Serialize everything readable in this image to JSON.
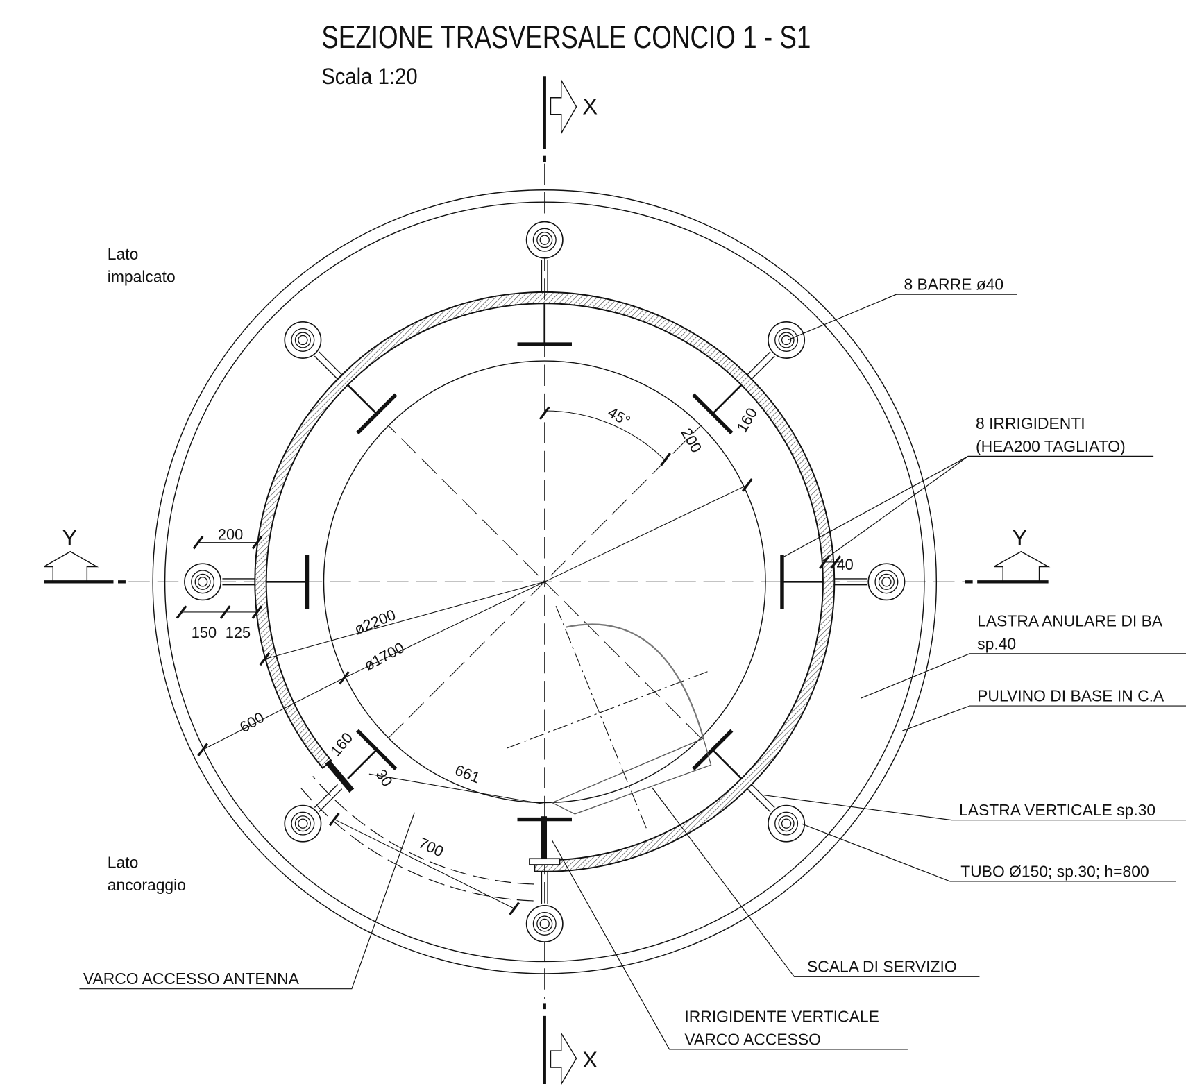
{
  "header": {
    "title": "SEZIONE TRASVERSALE CONCIO 1 - S1",
    "subtitle": "Scala 1:20"
  },
  "section_marks": {
    "top": "X",
    "bottom": "X",
    "left": "Y",
    "right": "Y"
  },
  "side_labels": [
    {
      "lines": [
        "Lato",
        "impalcato"
      ]
    },
    {
      "lines": [
        "Lato",
        "ancoraggio"
      ]
    }
  ],
  "callouts": [
    {
      "lines": [
        "8 BARRE ø40"
      ]
    },
    {
      "lines": [
        "8 IRRIGIDENTI",
        "(HEA200 TAGLIATO)"
      ]
    },
    {
      "lines": [
        "LASTRA ANULARE DI BA",
        "sp.40"
      ]
    },
    {
      "lines": [
        "PULVINO DI BASE IN C.A"
      ]
    },
    {
      "lines": [
        "LASTRA VERTICALE sp.30"
      ]
    },
    {
      "lines": [
        "TUBO Ø150; sp.30; h=800"
      ]
    },
    {
      "lines": [
        "SCALA DI SERVIZIO"
      ]
    },
    {
      "lines": [
        "VARCO ACCESSO ANTENNA"
      ]
    },
    {
      "lines": [
        "IRRIGIDENTE VERTICALE",
        "VARCO ACCESSO"
      ]
    }
  ],
  "dimensions": [
    "45°",
    "200",
    "160",
    "40",
    "200",
    "150",
    "125",
    "ø2200",
    "ø1700",
    "600",
    "160",
    "30",
    "661",
    "700"
  ]
}
